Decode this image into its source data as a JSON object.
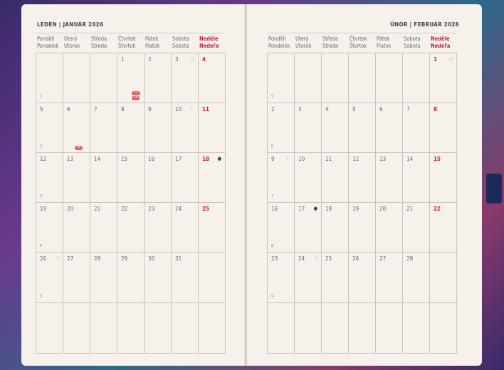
{
  "weekday_headers": [
    [
      "Pondělí",
      "Pondelok"
    ],
    [
      "Úterý",
      "Utorok"
    ],
    [
      "Středa",
      "Streda"
    ],
    [
      "Čtvrtek",
      "Štvrtok"
    ],
    [
      "Pátek",
      "Piatok"
    ],
    [
      "Sobota",
      "Sobota"
    ],
    [
      "Neděle",
      "Nedeľa"
    ]
  ],
  "colors": {
    "sunday": "#c8203a",
    "badge": "#d9655a",
    "page": "#f7f1ec",
    "ribbon": "#1c2a5a"
  },
  "months": [
    {
      "title": "LEDEN | JANUÁR 2026",
      "week_numbers": [
        "1",
        "2",
        "3",
        "4",
        "5",
        ""
      ],
      "weeks": [
        [
          "",
          "",
          "",
          "1",
          "2",
          "3",
          "4"
        ],
        [
          "5",
          "6",
          "7",
          "8",
          "9",
          "10",
          "11"
        ],
        [
          "12",
          "13",
          "14",
          "15",
          "16",
          "17",
          "18"
        ],
        [
          "19",
          "20",
          "21",
          "22",
          "23",
          "24",
          "25"
        ],
        [
          "26",
          "27",
          "28",
          "29",
          "30",
          "31",
          ""
        ],
        [
          "",
          "",
          "",
          "",
          "",
          "",
          ""
        ]
      ],
      "moons": {
        "3": "full-moon",
        "10": "last-quarter",
        "18": "new-moon",
        "26": "first-quarter"
      },
      "badges": [
        {
          "day": "1",
          "labels": [
            "CZ",
            "SK"
          ]
        },
        {
          "day": "6",
          "labels": [
            "SK"
          ]
        }
      ]
    },
    {
      "title": "ÚNOR | FEBRUÁR 2026",
      "week_numbers": [
        "5",
        "6",
        "7",
        "8",
        "9",
        ""
      ],
      "weeks": [
        [
          "",
          "",
          "",
          "",
          "",
          "",
          "1"
        ],
        [
          "2",
          "3",
          "4",
          "5",
          "6",
          "7",
          "8"
        ],
        [
          "9",
          "10",
          "11",
          "12",
          "13",
          "14",
          "15"
        ],
        [
          "16",
          "17",
          "18",
          "19",
          "20",
          "21",
          "22"
        ],
        [
          "23",
          "24",
          "25",
          "26",
          "27",
          "28",
          ""
        ],
        [
          "",
          "",
          "",
          "",
          "",
          "",
          ""
        ]
      ],
      "moons": {
        "1": "full-moon",
        "9": "last-quarter",
        "17": "new-moon",
        "24": "first-quarter"
      },
      "badges": []
    }
  ]
}
